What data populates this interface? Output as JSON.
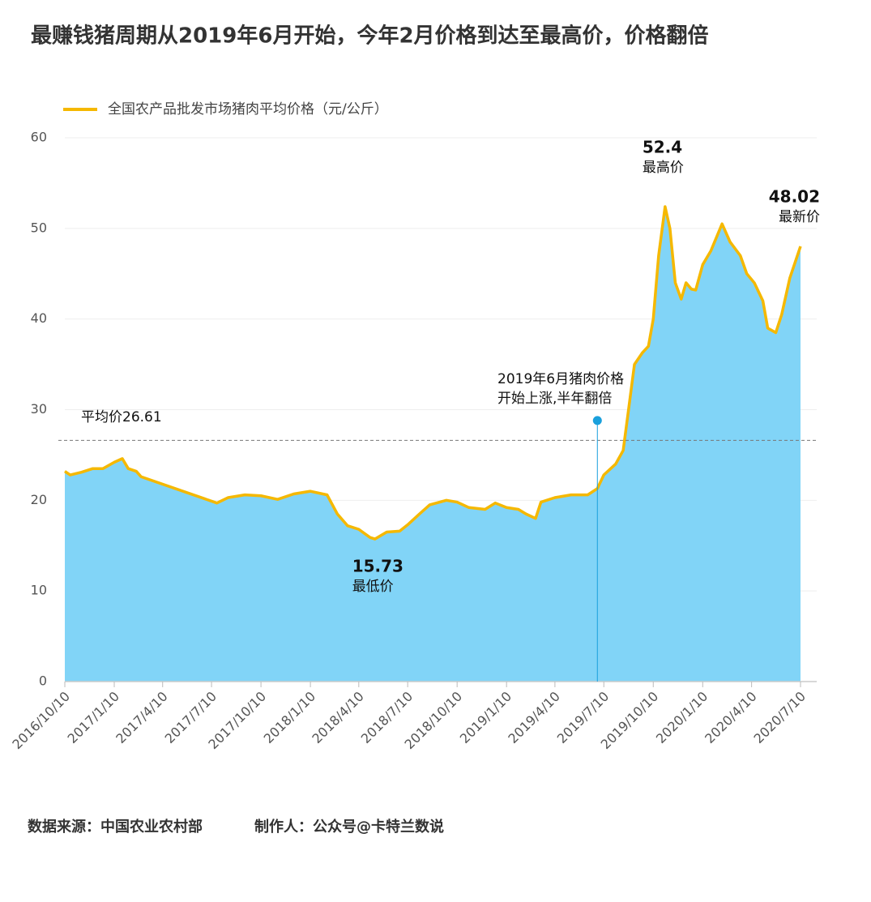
{
  "chart_data": {
    "type": "area",
    "title": "最赚钱猪周期从2019年6月开始，今年2月价格到达至最高价，价格翻倍",
    "series": [
      {
        "name": "全国农产品批发市场猪肉平均价格（元/公斤）",
        "color": "#f5b800",
        "fill": "#81d4f7",
        "x": [
          "2016/10/10",
          "2016/10/20",
          "2016/11/10",
          "2016/12/01",
          "2016/12/20",
          "2017/01/10",
          "2017/01/25",
          "2017/02/05",
          "2017/02/20",
          "2017/03/01",
          "2017/07/20",
          "2017/08/10",
          "2017/09/10",
          "2017/10/10",
          "2017/11/10",
          "2017/12/10",
          "2018/01/10",
          "2018/02/10",
          "2018/03/01",
          "2018/03/20",
          "2018/04/10",
          "2018/05/01",
          "2018/05/10",
          "2018/06/01",
          "2018/06/25",
          "2018/07/10",
          "2018/08/01",
          "2018/08/20",
          "2018/09/20",
          "2018/10/10",
          "2018/11/01",
          "2018/12/01",
          "2018/12/20",
          "2019/01/10",
          "2019/02/01",
          "2019/02/15",
          "2019/03/05",
          "2019/03/15",
          "2019/04/10",
          "2019/05/10",
          "2019/06/10",
          "2019/06/28",
          "2019/07/10",
          "2019/08/01",
          "2019/08/15",
          "2019/08/25",
          "2019/09/05",
          "2019/09/20",
          "2019/10/01",
          "2019/10/10",
          "2019/10/20",
          "2019/11/01",
          "2019/11/10",
          "2019/11/20",
          "2019/12/01",
          "2019/12/10",
          "2019/12/20",
          "2019/12/28",
          "2020/01/10",
          "2020/01/25",
          "2020/02/15",
          "2020/03/01",
          "2020/03/20",
          "2020/04/01",
          "2020/04/15",
          "2020/05/01",
          "2020/05/10",
          "2020/05/25",
          "2020/06/05",
          "2020/06/20",
          "2020/07/10"
        ],
        "values": [
          23.2,
          22.8,
          23.1,
          23.5,
          23.5,
          24.2,
          24.6,
          23.5,
          23.2,
          22.6,
          19.7,
          20.3,
          20.6,
          20.5,
          20.1,
          20.7,
          21.0,
          20.6,
          18.5,
          17.2,
          16.8,
          15.9,
          15.73,
          16.5,
          16.6,
          17.3,
          18.5,
          19.5,
          20.0,
          19.8,
          19.2,
          19.0,
          19.7,
          19.2,
          19.0,
          18.5,
          18.0,
          19.8,
          20.3,
          20.6,
          20.6,
          21.3,
          22.8,
          24.0,
          25.5,
          30,
          35,
          36.3,
          37,
          40,
          47,
          52.4,
          50,
          44,
          42.2,
          44,
          43.3,
          43.2,
          46,
          47.5,
          50.5,
          48.5,
          47,
          45,
          44,
          42,
          39,
          38.5,
          40.5,
          44.5,
          48.02
        ]
      }
    ],
    "xlim": [
      "2016/10/10",
      "2020/07/10"
    ],
    "xticks": [
      "2016/10/10",
      "2017/1/10",
      "2017/4/10",
      "2017/7/10",
      "2017/10/10",
      "2018/1/10",
      "2018/4/10",
      "2018/7/10",
      "2018/10/10",
      "2019/1/10",
      "2019/4/10",
      "2019/7/10",
      "2019/10/10",
      "2020/1/10",
      "2020/4/10",
      "2020/7/10"
    ],
    "ylim": [
      0,
      60
    ],
    "yticks": [
      0,
      10,
      20,
      30,
      40,
      50,
      60
    ],
    "grid": true,
    "legend": "top-left",
    "average": {
      "value": 26.61,
      "label": "平均价26.61"
    },
    "point_labels": [
      {
        "x": "2019/11/01",
        "value": 52.4,
        "label": "最高价"
      },
      {
        "x": "2018/05/10",
        "value": 15.73,
        "label": "最低价"
      },
      {
        "x": "2020/07/10",
        "value": 48.02,
        "label": "最新价"
      }
    ],
    "event": {
      "x": "2019/06/28",
      "y": 28.8,
      "lines": [
        "2019年6月猪肉价格",
        "开始上涨,半年翻倍"
      ]
    }
  },
  "footer": {
    "source": "数据来源：中国农业农村部",
    "author": "制作人：公众号@卡特兰数说"
  }
}
